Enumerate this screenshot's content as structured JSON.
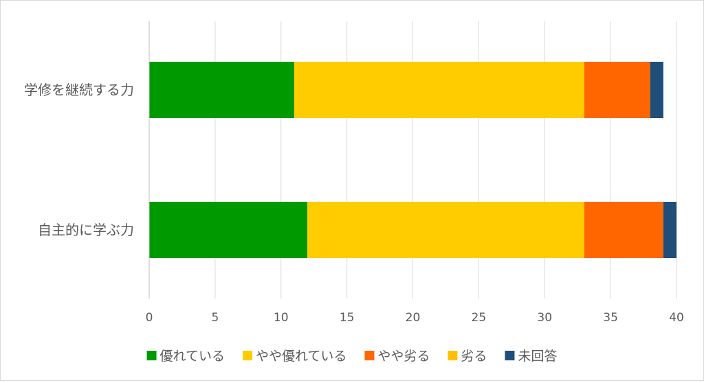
{
  "chart_data": {
    "type": "bar",
    "orientation": "horizontal",
    "stacked": true,
    "categories": [
      "学修を継続する力",
      "自主的に学ぶ力"
    ],
    "series": [
      {
        "name": "優れている",
        "color": "#009900",
        "values": [
          11,
          12
        ]
      },
      {
        "name": "やや優れている",
        "color": "#ffcc00",
        "values": [
          22,
          21
        ]
      },
      {
        "name": "やや劣る",
        "color": "#ff6600",
        "values": [
          5,
          6
        ]
      },
      {
        "name": "劣る",
        "color": "#ffc000",
        "values": [
          0,
          0
        ]
      },
      {
        "name": "未回答",
        "color": "#1f4e79",
        "values": [
          1,
          1
        ]
      }
    ],
    "xlim": [
      0,
      40
    ],
    "xticks": [
      0,
      5,
      10,
      15,
      20,
      25,
      30,
      35,
      40
    ],
    "grid": true,
    "legend": "bottom"
  }
}
